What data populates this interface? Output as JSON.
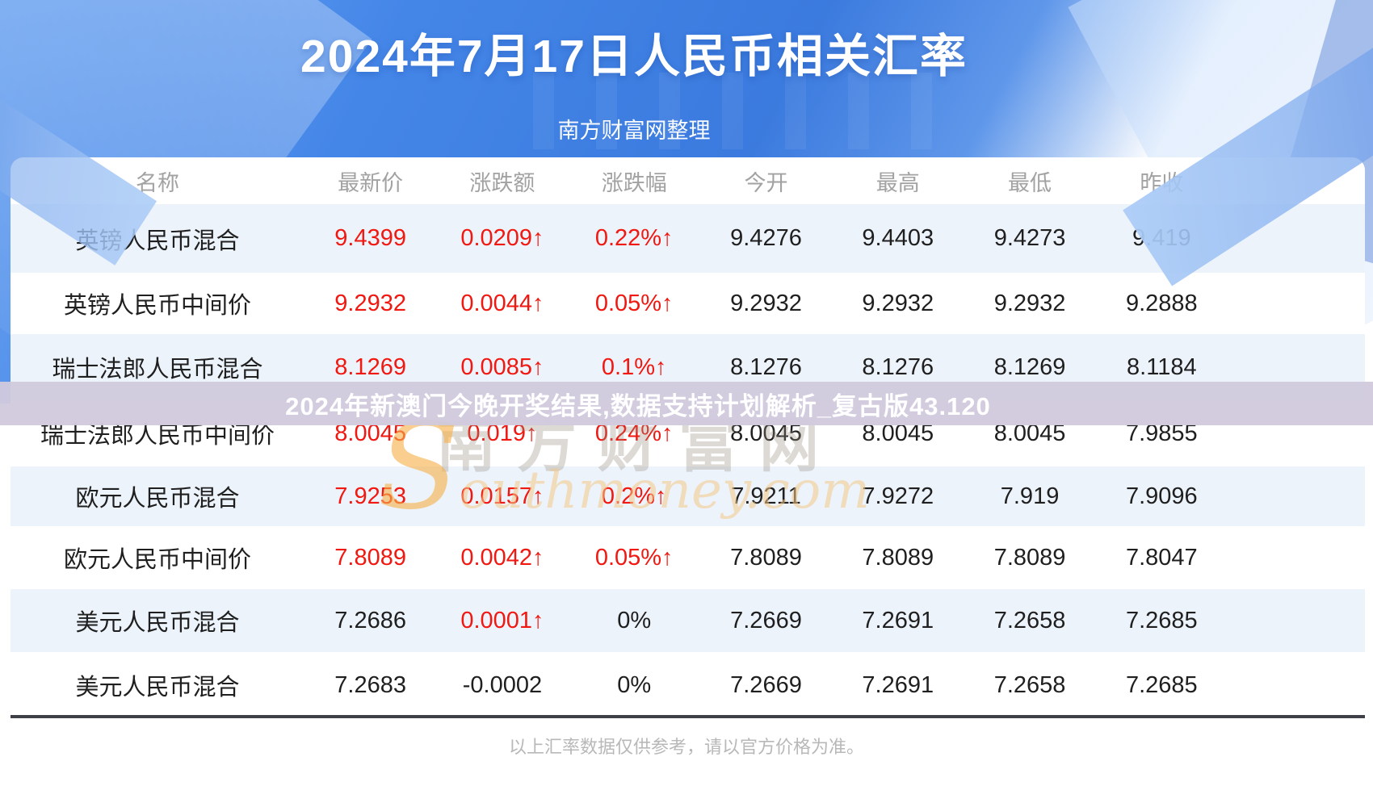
{
  "page": {
    "title": "2024年7月17日人民币相关汇率",
    "subtitle": "南方财富网整理",
    "disclaimer": "以上汇率数据仅供参考，请以官方价格为准。"
  },
  "overlay_banner": {
    "text": "2024年新澳门今晚开奖结果,数据支持计划解析_复古版43.120"
  },
  "watermark": {
    "cn": "南方财富网",
    "en": "Southmoney.com"
  },
  "colors": {
    "up_red": "#f01810",
    "header_blue": "#3b7ade",
    "row_alt_blue": "#edf3fb",
    "banner_bg": "#d1c9dd",
    "column_header_gray": "#a2a2a2",
    "text_dark": "#1f1f1f",
    "divider_dark": "#3d4147"
  },
  "chart_data": {
    "type": "table",
    "title": "2024年7月17日人民币相关汇率",
    "subtitle": "南方财富网整理",
    "columns": [
      "名称",
      "最新价",
      "涨跌额",
      "涨跌幅",
      "今开",
      "最高",
      "最低",
      "昨收"
    ],
    "rows": [
      {
        "name": "英镑人民币混合",
        "last": "9.4399",
        "last_red": true,
        "change": "0.0209↑",
        "change_red": true,
        "pct": "0.22%↑",
        "pct_red": true,
        "open": "9.4276",
        "high": "9.4403",
        "low": "9.4273",
        "prev": "9.419"
      },
      {
        "name": "英镑人民币中间价",
        "last": "9.2932",
        "last_red": true,
        "change": "0.0044↑",
        "change_red": true,
        "pct": "0.05%↑",
        "pct_red": true,
        "open": "9.2932",
        "high": "9.2932",
        "low": "9.2932",
        "prev": "9.2888"
      },
      {
        "name": "瑞士法郎人民币混合",
        "last": "8.1269",
        "last_red": true,
        "change": "0.0085↑",
        "change_red": true,
        "pct": "0.1%↑",
        "pct_red": true,
        "open": "8.1276",
        "high": "8.1276",
        "low": "8.1269",
        "prev": "8.1184"
      },
      {
        "name": "瑞士法郎人民币中间价",
        "last": "8.0045",
        "last_red": true,
        "change": "0.019↑",
        "change_red": true,
        "pct": "0.24%↑",
        "pct_red": true,
        "open": "8.0045",
        "high": "8.0045",
        "low": "8.0045",
        "prev": "7.9855"
      },
      {
        "name": "欧元人民币混合",
        "last": "7.9253",
        "last_red": true,
        "change": "0.0157↑",
        "change_red": true,
        "pct": "0.2%↑",
        "pct_red": true,
        "open": "7.9211",
        "high": "7.9272",
        "low": "7.919",
        "prev": "7.9096"
      },
      {
        "name": "欧元人民币中间价",
        "last": "7.8089",
        "last_red": true,
        "change": "0.0042↑",
        "change_red": true,
        "pct": "0.05%↑",
        "pct_red": true,
        "open": "7.8089",
        "high": "7.8089",
        "low": "7.8089",
        "prev": "7.8047"
      },
      {
        "name": "美元人民币混合",
        "last": "7.2686",
        "last_red": false,
        "change": "0.0001↑",
        "change_red": true,
        "pct": "0%",
        "pct_red": false,
        "open": "7.2669",
        "high": "7.2691",
        "low": "7.2658",
        "prev": "7.2685"
      },
      {
        "name": "美元人民币混合",
        "last": "7.2683",
        "last_red": false,
        "change": "-0.0002",
        "change_red": false,
        "pct": "0%",
        "pct_red": false,
        "open": "7.2669",
        "high": "7.2691",
        "low": "7.2658",
        "prev": "7.2685"
      }
    ]
  }
}
